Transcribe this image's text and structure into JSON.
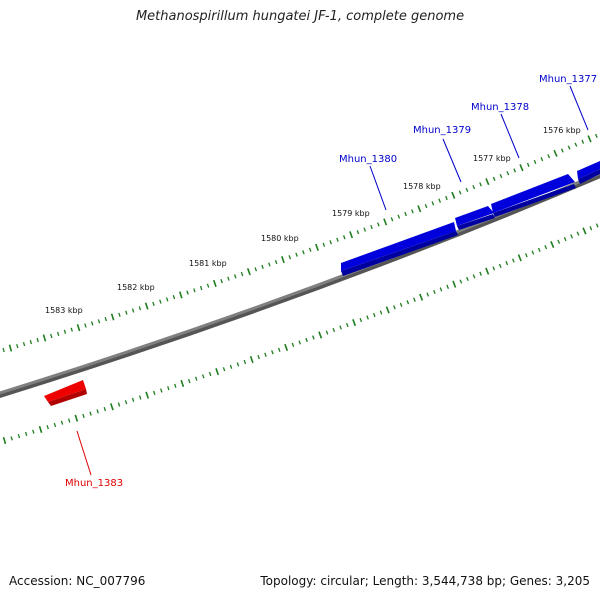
{
  "title": "Methanospirillum hungatei JF-1, complete genome",
  "footer": {
    "accession": "Accession: NC_007796",
    "summary": "Topology: circular; Length: 3,544,738 bp; Genes: 3,205"
  },
  "colors": {
    "backbone": "#808080",
    "backbone_shadow": "#555555",
    "tick": "#1e7d1e",
    "forward_gene": "#0000dd",
    "forward_gene_dark": "#0000a0",
    "reverse_gene": "#ee0000",
    "reverse_gene_dark": "#b00000",
    "forward_label": "#0000cc",
    "reverse_label": "#dd0000"
  },
  "scale_labels": [
    "1583 kbp",
    "1582 kbp",
    "1581 kbp",
    "1580 kbp",
    "1579 kbp",
    "1578 kbp",
    "1577 kbp",
    "1576 kbp"
  ],
  "genes": [
    {
      "name": "Mhun_1380",
      "strand": "forward"
    },
    {
      "name": "Mhun_1379",
      "strand": "forward"
    },
    {
      "name": "Mhun_1378",
      "strand": "forward"
    },
    {
      "name": "Mhun_1377",
      "strand": "forward"
    },
    {
      "name": "Mhun_1383",
      "strand": "reverse"
    }
  ]
}
